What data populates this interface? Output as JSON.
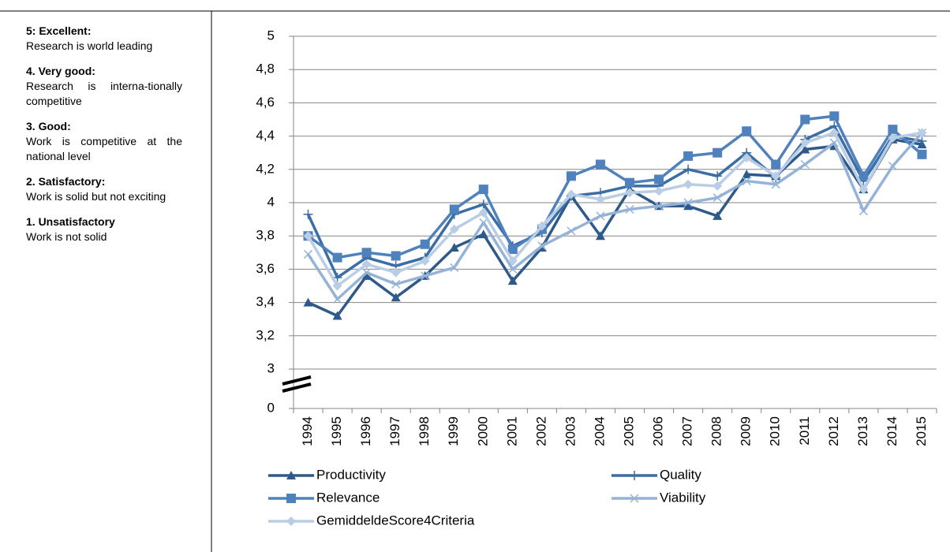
{
  "sidebar": {
    "items": [
      {
        "heading": "5: Excellent:",
        "text": "Research is world leading"
      },
      {
        "heading": "4. Very good:",
        "text": "Research is interna-tionally competitive"
      },
      {
        "heading": "3. Good:",
        "text": "Work is competitive at the national level"
      },
      {
        "heading": "2. Satisfactory:",
        "text": "Work is solid but not exciting"
      },
      {
        "heading": "1. Unsatisfactory",
        "text": "Work is not solid"
      }
    ]
  },
  "chart_data": {
    "type": "line",
    "categories": [
      "1994",
      "1995",
      "1996",
      "1997",
      "1998",
      "1999",
      "2000",
      "2001",
      "2002",
      "2003",
      "2004",
      "2005",
      "2006",
      "2007",
      "2008",
      "2009",
      "2010",
      "2011",
      "2012",
      "2013",
      "2014",
      "2015"
    ],
    "series": [
      {
        "name": "Productivity",
        "color": "#2e5a8a",
        "marker": "triangle",
        "values": [
          3.4,
          3.32,
          3.56,
          3.43,
          3.56,
          3.73,
          3.81,
          3.53,
          3.73,
          4.04,
          3.8,
          4.08,
          3.98,
          3.98,
          3.92,
          4.17,
          4.16,
          4.32,
          4.34,
          4.08,
          4.38,
          4.35
        ]
      },
      {
        "name": "Quality",
        "color": "#3b6ea5",
        "marker": "plus",
        "values": [
          3.93,
          3.55,
          3.67,
          3.62,
          3.67,
          3.93,
          3.99,
          3.74,
          3.82,
          4.04,
          4.06,
          4.1,
          4.1,
          4.2,
          4.16,
          4.3,
          4.15,
          4.38,
          4.46,
          4.13,
          4.4,
          4.37
        ]
      },
      {
        "name": "Relevance",
        "color": "#4f81bd",
        "marker": "square",
        "values": [
          3.8,
          3.67,
          3.7,
          3.68,
          3.75,
          3.96,
          4.08,
          3.72,
          3.84,
          4.16,
          4.23,
          4.12,
          4.14,
          4.28,
          4.3,
          4.43,
          4.23,
          4.5,
          4.52,
          4.16,
          4.44,
          4.29
        ]
      },
      {
        "name": "Viability",
        "color": "#95b3d7",
        "marker": "x",
        "values": [
          3.69,
          3.42,
          3.58,
          3.51,
          3.56,
          3.61,
          3.88,
          3.6,
          3.74,
          3.83,
          3.92,
          3.96,
          3.98,
          4.0,
          4.03,
          4.13,
          4.11,
          4.23,
          4.36,
          3.95,
          4.22,
          4.42
        ]
      },
      {
        "name": "GemiddeldeScore4Criteria",
        "color": "#b9cde5",
        "marker": "diamond",
        "values": [
          3.8,
          3.5,
          3.63,
          3.58,
          3.65,
          3.84,
          3.94,
          3.65,
          3.86,
          4.05,
          4.02,
          4.06,
          4.07,
          4.11,
          4.1,
          4.27,
          4.16,
          4.36,
          4.42,
          4.08,
          4.39,
          4.42
        ]
      }
    ],
    "ylim": [
      3,
      5
    ],
    "yticks": [
      0,
      3,
      {
        "value": 3.2,
        "label": "3,2"
      },
      {
        "value": 3.4,
        "label": "3,4"
      },
      {
        "value": 3.6,
        "label": "3,6"
      },
      {
        "value": 3.8,
        "label": "3,8"
      },
      4,
      {
        "value": 4.2,
        "label": "4,2"
      },
      {
        "value": 4.4,
        "label": "4,4"
      },
      {
        "value": 4.6,
        "label": "4,6"
      },
      {
        "value": 4.8,
        "label": "4,8"
      },
      5
    ],
    "axis_break": true,
    "grid": true,
    "legend": "bottom"
  }
}
